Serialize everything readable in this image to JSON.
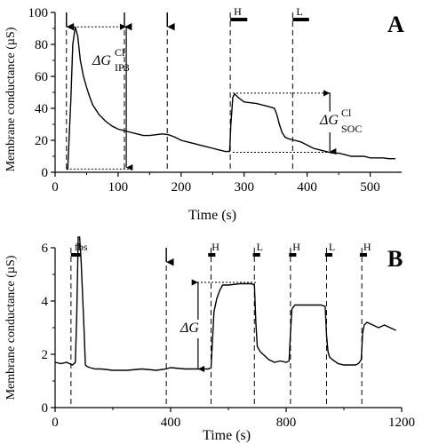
{
  "chart_data": [
    {
      "panel": "A",
      "type": "line",
      "xlabel": "Time (s)",
      "ylabel": "Membrane conductance (µS)",
      "xlim": [
        0,
        550
      ],
      "ylim": [
        0,
        100
      ],
      "xticks": [
        "0",
        "100",
        "200",
        "300",
        "400",
        "500"
      ],
      "yticks": [
        "0",
        "20",
        "40",
        "60",
        "80",
        "100"
      ],
      "x": [
        18,
        20,
        25,
        28,
        32,
        36,
        40,
        45,
        50,
        55,
        60,
        70,
        80,
        90,
        100,
        110,
        120,
        130,
        140,
        150,
        160,
        170,
        180,
        190,
        200,
        210,
        220,
        230,
        240,
        250,
        260,
        270,
        277,
        279,
        282,
        285,
        290,
        300,
        310,
        320,
        330,
        340,
        348,
        352,
        356,
        360,
        365,
        370,
        380,
        390,
        400,
        410,
        420,
        430,
        440,
        450,
        460,
        470,
        480,
        490,
        500,
        510,
        520,
        530,
        540
      ],
      "y": [
        2,
        2,
        45,
        80,
        91,
        85,
        70,
        60,
        53,
        47,
        42,
        36,
        32,
        29,
        27,
        26,
        25,
        24,
        23,
        23,
        23.5,
        24,
        23.5,
        22,
        20,
        19,
        18,
        17,
        16,
        15,
        14,
        13,
        13,
        30,
        47,
        49,
        47,
        44,
        43.5,
        43,
        42,
        41,
        40,
        36,
        30,
        25,
        22,
        21,
        20,
        19,
        17,
        15,
        14,
        13,
        12,
        12,
        11,
        10,
        10,
        10,
        9,
        9,
        9,
        8.5,
        8.5
      ],
      "markers": [
        {
          "type": "arrow",
          "x": 18
        },
        {
          "type": "arrow",
          "x": 110
        },
        {
          "type": "arrow",
          "x": 178
        },
        {
          "type": "bar",
          "label": "H",
          "x": [
            278,
            305
          ]
        },
        {
          "type": "bar",
          "label": "L",
          "x": [
            377,
            403
          ]
        }
      ],
      "dashed_lines": [
        18,
        110,
        178,
        278,
        377
      ],
      "annotations": [
        {
          "text": "ΔG",
          "sup": "Cl",
          "sub": "IP3"
        },
        {
          "text": "ΔG",
          "sup": "Cl",
          "sub": "SOC"
        }
      ]
    },
    {
      "panel": "B",
      "type": "line",
      "xlabel": "Time (s)",
      "ylabel": "Membrane conductance (µS)",
      "xlim": [
        0,
        1200
      ],
      "ylim": [
        0,
        6
      ],
      "xticks": [
        "0",
        "400",
        "800",
        "1200"
      ],
      "yticks": [
        "0",
        "2",
        "4",
        "6"
      ],
      "x": [
        0,
        20,
        40,
        60,
        70,
        75,
        80,
        85,
        90,
        100,
        105,
        110,
        120,
        140,
        160,
        200,
        250,
        300,
        350,
        385,
        400,
        450,
        500,
        530,
        540,
        545,
        550,
        560,
        570,
        580,
        600,
        640,
        680,
        690,
        695,
        700,
        710,
        720,
        740,
        760,
        780,
        800,
        810,
        815,
        820,
        830,
        840,
        860,
        880,
        900,
        920,
        935,
        940,
        945,
        950,
        960,
        980,
        1000,
        1020,
        1040,
        1050,
        1060,
        1065,
        1070,
        1080,
        1100,
        1120,
        1140,
        1160,
        1180
      ],
      "y": [
        1.7,
        1.65,
        1.7,
        1.6,
        1.7,
        3.5,
        6.4,
        6.4,
        5.5,
        3,
        1.6,
        1.55,
        1.5,
        1.45,
        1.45,
        1.4,
        1.4,
        1.45,
        1.4,
        1.45,
        1.5,
        1.45,
        1.45,
        1.45,
        1.5,
        2.5,
        3.6,
        4.1,
        4.4,
        4.6,
        4.6,
        4.65,
        4.65,
        4.6,
        3.2,
        2.3,
        2.1,
        2.0,
        1.8,
        1.7,
        1.75,
        1.7,
        1.75,
        2.8,
        3.7,
        3.85,
        3.85,
        3.85,
        3.85,
        3.85,
        3.85,
        3.8,
        2.7,
        2.1,
        1.9,
        1.8,
        1.65,
        1.6,
        1.6,
        1.6,
        1.65,
        1.8,
        2.8,
        3.1,
        3.2,
        3.1,
        3.0,
        3.1,
        3.0,
        2.9
      ],
      "markers": [
        {
          "type": "bar",
          "label": "fbs",
          "x": [
            55,
            90
          ]
        },
        {
          "type": "arrow",
          "x": 385
        },
        {
          "type": "bar",
          "label": "H",
          "x": [
            530,
            555
          ]
        },
        {
          "type": "bar",
          "label": "L",
          "x": [
            685,
            710
          ]
        },
        {
          "type": "bar",
          "label": "H",
          "x": [
            810,
            835
          ]
        },
        {
          "type": "bar",
          "label": "L",
          "x": [
            935,
            960
          ]
        },
        {
          "type": "bar",
          "label": "H",
          "x": [
            1055,
            1080
          ]
        }
      ],
      "dashed_lines": [
        55,
        385,
        540,
        690,
        815,
        940,
        1062
      ],
      "annotations": [
        {
          "text": "ΔG",
          "sup": "",
          "sub": ""
        }
      ]
    }
  ]
}
